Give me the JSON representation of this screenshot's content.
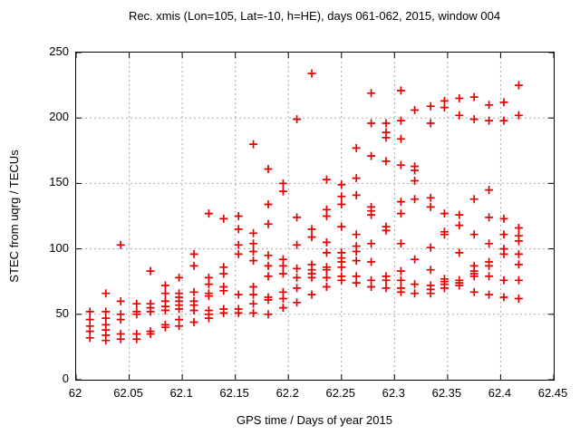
{
  "title": "Rec. xmis (Lon=105, Lat=-10, h=HE), days 061-062, 2015, window 004",
  "chart_data": {
    "type": "scatter",
    "title": "Rec. xmis (Lon=105, Lat=-10, h=HE), days 061-062, 2015, window 004",
    "xlabel": "GPS time / Days of year 2015",
    "ylabel": "STEC from uqrg / TECUs",
    "xlim": [
      62,
      62.45
    ],
    "ylim": [
      0,
      250
    ],
    "xticks": [
      62,
      62.05,
      62.1,
      62.15,
      62.2,
      62.25,
      62.3,
      62.35,
      62.4,
      62.45
    ],
    "xtick_labels": [
      "62",
      "62.05",
      "62.1",
      "62.15",
      "62.2",
      "62.25",
      "62.3",
      "62.35",
      "62.4",
      "62.45"
    ],
    "yticks": [
      0,
      50,
      100,
      150,
      200,
      250
    ],
    "ytick_labels": [
      "0",
      "50",
      "100",
      "150",
      "200",
      "250"
    ],
    "grid": true,
    "legend": "none",
    "marker": {
      "shape": "plus",
      "color": "#e60000",
      "size": 9,
      "stroke": 1.7
    },
    "series": [
      {
        "name": "STEC",
        "epochs": [
          {
            "x": 62.013,
            "ys": [
              52,
              46,
              41,
              37,
              32
            ]
          },
          {
            "x": 62.028,
            "ys": [
              66,
              52,
              47,
              42,
              38,
              34,
              30
            ]
          },
          {
            "x": 62.042,
            "ys": [
              103,
              60,
              50,
              46,
              35,
              31
            ]
          },
          {
            "x": 62.057,
            "ys": [
              58,
              52,
              50,
              35,
              31
            ]
          },
          {
            "x": 62.07,
            "ys": [
              83,
              58,
              55,
              52,
              37,
              35
            ]
          },
          {
            "x": 62.084,
            "ys": [
              72,
              66,
              60,
              56,
              53,
              42,
              40
            ]
          },
          {
            "x": 62.097,
            "ys": [
              78,
              66,
              63,
              60,
              57,
              54,
              46,
              41
            ]
          },
          {
            "x": 62.111,
            "ys": [
              96,
              87,
              67,
              60,
              57,
              53,
              44
            ]
          },
          {
            "x": 62.125,
            "ys": [
              127,
              78,
              73,
              66,
              64,
              53,
              50,
              47
            ]
          },
          {
            "x": 62.139,
            "ys": [
              123,
              86,
              81,
              71,
              68,
              54,
              51
            ]
          },
          {
            "x": 62.153,
            "ys": [
              125,
              115,
              103,
              96,
              65,
              54,
              51
            ]
          },
          {
            "x": 62.167,
            "ys": [
              180,
              112,
              104,
              98,
              91,
              71,
              65,
              58,
              51
            ]
          },
          {
            "x": 62.181,
            "ys": [
              161,
              134,
              119,
              95,
              87,
              79,
              63,
              61,
              50
            ]
          },
          {
            "x": 62.195,
            "ys": [
              150,
              144,
              92,
              87,
              81,
              67,
              62,
              55
            ]
          },
          {
            "x": 62.208,
            "ys": [
              199,
              124,
              103,
              85,
              78,
              70,
              59
            ]
          },
          {
            "x": 62.222,
            "ys": [
              234,
              115,
              109,
              88,
              84,
              81,
              78,
              65
            ]
          },
          {
            "x": 62.236,
            "ys": [
              153,
              130,
              125,
              105,
              97,
              86,
              84,
              78,
              71
            ]
          },
          {
            "x": 62.25,
            "ys": [
              149,
              140,
              134,
              117,
              97,
              93,
              90,
              86,
              79,
              76
            ]
          },
          {
            "x": 62.264,
            "ys": [
              177,
              154,
              141,
              111,
              102,
              98,
              91,
              79,
              74
            ]
          },
          {
            "x": 62.278,
            "ys": [
              219,
              196,
              171,
              132,
              129,
              126,
              104,
              90,
              76,
              71
            ]
          },
          {
            "x": 62.292,
            "ys": [
              196,
              189,
              185,
              167,
              117,
              114,
              79,
              76,
              70
            ]
          },
          {
            "x": 62.306,
            "ys": [
              221,
              198,
              184,
              164,
              136,
              127,
              104,
              83,
              76,
              70,
              67
            ]
          },
          {
            "x": 62.319,
            "ys": [
              206,
              163,
              160,
              152,
              138,
              92,
              73,
              66
            ]
          },
          {
            "x": 62.334,
            "ys": [
              209,
              196,
              139,
              132,
              101,
              84,
              72,
              69,
              66
            ]
          },
          {
            "x": 62.347,
            "ys": [
              213,
              208,
              127,
              113,
              111,
              77,
              75,
              73,
              70
            ]
          },
          {
            "x": 62.361,
            "ys": [
              215,
              202,
              126,
              118,
              97,
              76,
              74,
              72
            ]
          },
          {
            "x": 62.375,
            "ys": [
              216,
              199,
              138,
              111,
              87,
              83,
              81,
              79,
              67
            ]
          },
          {
            "x": 62.389,
            "ys": [
              210,
              198,
              145,
              124,
              104,
              90,
              87,
              79,
              65
            ]
          },
          {
            "x": 62.403,
            "ys": [
              212,
              198,
              123,
              111,
              100,
              96,
              76,
              63
            ]
          },
          {
            "x": 62.417,
            "ys": [
              225,
              202,
              116,
              110,
              106,
              96,
              88,
              76,
              62
            ]
          }
        ]
      }
    ]
  }
}
